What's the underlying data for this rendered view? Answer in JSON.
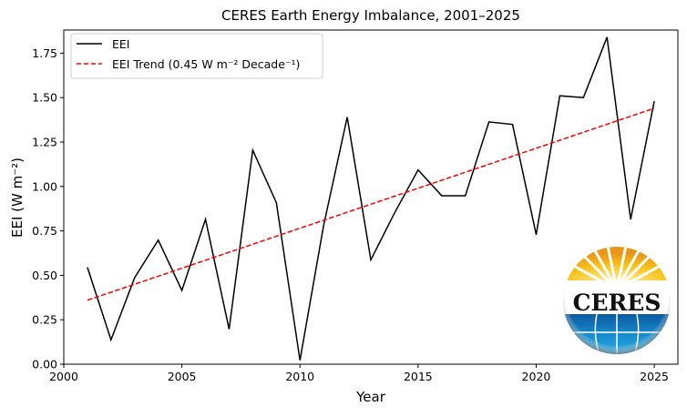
{
  "chart_data": {
    "type": "line",
    "title": "CERES Earth Energy Imbalance, 2001–2025",
    "xlabel": "Year",
    "ylabel": "EEI (W m⁻²)",
    "xlim": [
      2000,
      2026
    ],
    "ylim": [
      0,
      1.88
    ],
    "xticks": [
      2000,
      2005,
      2010,
      2015,
      2020,
      2025
    ],
    "yticks": [
      0.0,
      0.25,
      0.5,
      0.75,
      1.0,
      1.25,
      1.5,
      1.75
    ],
    "xtick_labels": [
      "2000",
      "2005",
      "2010",
      "2015",
      "2020",
      "2025"
    ],
    "ytick_labels": [
      "0.00",
      "0.25",
      "0.50",
      "0.75",
      "1.00",
      "1.25",
      "1.50",
      "1.75"
    ],
    "grid": false,
    "legend_placement": "top-left",
    "x": [
      2001,
      2002,
      2003,
      2004,
      2005,
      2006,
      2007,
      2008,
      2009,
      2010,
      2011,
      2012,
      2013,
      2014,
      2015,
      2016,
      2017,
      2018,
      2019,
      2020,
      2021,
      2022,
      2023,
      2024,
      2025
    ],
    "series": [
      {
        "name": "EEI",
        "color": "#000000",
        "style": "solid",
        "values": [
          0.545,
          0.137,
          0.487,
          0.698,
          0.415,
          0.815,
          0.197,
          1.204,
          0.909,
          0.022,
          0.78,
          1.39,
          0.587,
          0.85,
          1.093,
          0.948,
          0.948,
          1.363,
          1.349,
          0.729,
          1.51,
          1.5,
          1.84,
          0.815,
          1.48
        ]
      },
      {
        "name": "EEI Trend (0.45 W m⁻² Decade⁻¹)",
        "color": "#ff0000",
        "style": "dashed",
        "values_endpoints": {
          "2001": 0.36,
          "2025": 1.44
        }
      }
    ]
  },
  "logo": {
    "text": "CERES"
  }
}
